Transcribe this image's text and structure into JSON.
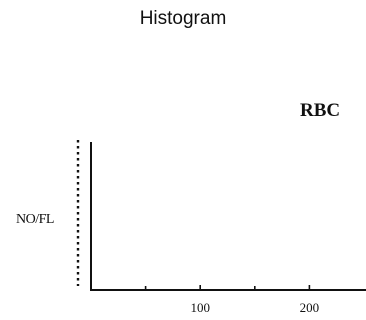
{
  "title": "Histogram",
  "chart_data": {
    "type": "bar",
    "title": "RBC",
    "xlabel": "",
    "ylabel": "NO/FL",
    "xlim": [
      0,
      250
    ],
    "x_ticks": [
      100,
      200
    ],
    "x_tick_labels": [
      "100",
      "200"
    ],
    "minor_x_ticks": [
      50,
      150
    ],
    "series": [],
    "grid": false
  }
}
